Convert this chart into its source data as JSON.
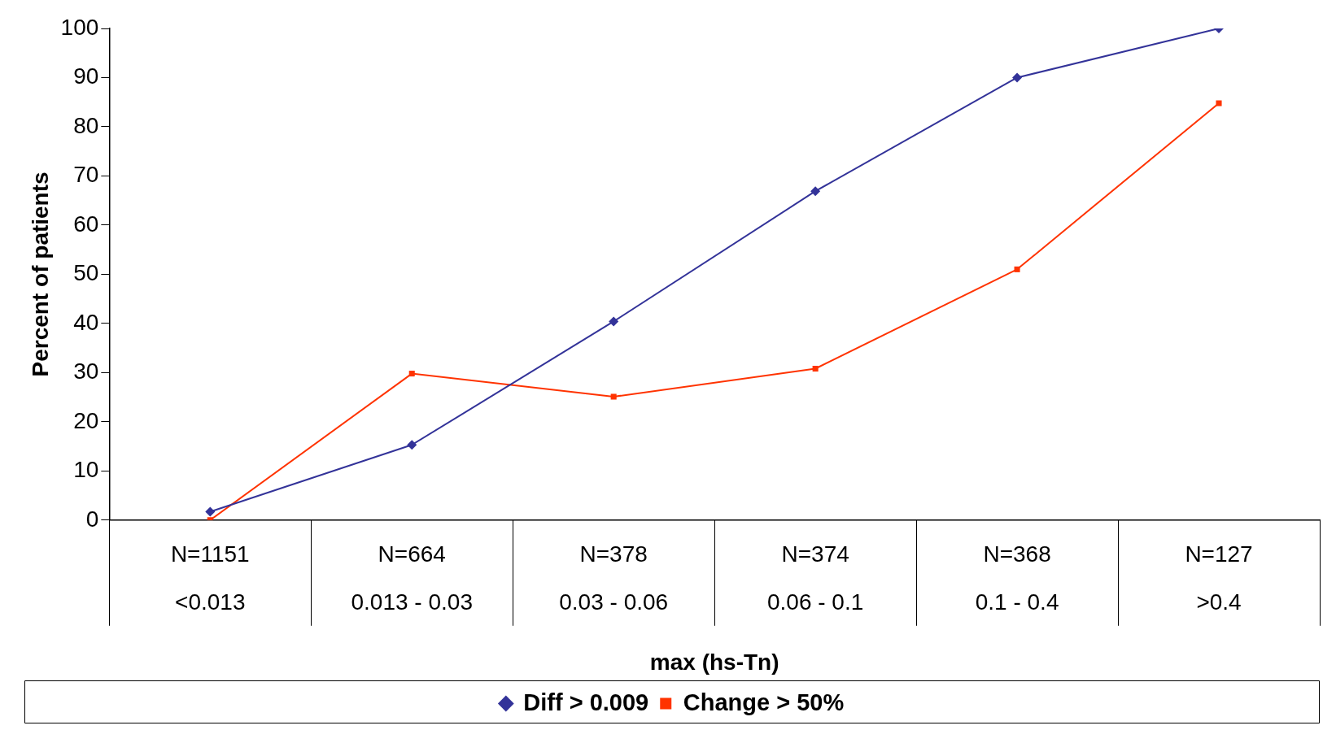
{
  "chart_data": {
    "type": "line",
    "xlabel": "max (hs-Tn)",
    "ylabel": "Percent of patients",
    "categories": [
      "N=1151\n<0.013",
      "N=664\n0.013 - 0.03",
      "N=378\n0.03 - 0.06",
      "N=374\n0.06 - 0.1",
      "N=368\n0.1 - 0.4",
      "N=127\n>0.4"
    ],
    "series": [
      {
        "name": "Diff > 0.009",
        "color": "#333399",
        "marker": "diamond",
        "values": [
          1.7,
          15.3,
          40.4,
          66.9,
          90,
          100
        ]
      },
      {
        "name": "Change > 50%",
        "color": "#ff3300",
        "marker": "square",
        "values": [
          0,
          29.8,
          25.1,
          30.8,
          51,
          84.8
        ]
      }
    ],
    "ylim": [
      0,
      100
    ],
    "yticks": [
      0,
      10,
      20,
      30,
      40,
      50,
      60,
      70,
      80,
      90,
      100
    ],
    "grid": false,
    "legend": "bottom",
    "line_style": "solid"
  }
}
